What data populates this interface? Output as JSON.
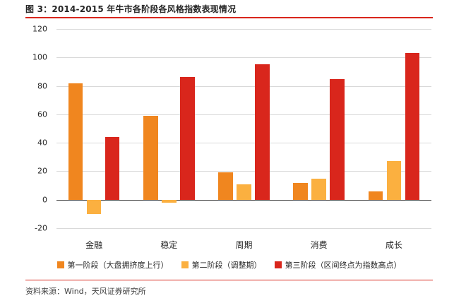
{
  "title": "图 3：2014-2015 年牛市各阶段各风格指数表现情况",
  "source": "资料来源：Wind，天风证券研究所",
  "colors": {
    "accent_line": "#D9261C",
    "grid_line": "#D9D9D9",
    "zero_axis": "#404040",
    "title_text": "#262626",
    "source_text": "#404040"
  },
  "chart_data": {
    "type": "bar",
    "title": "图 3：2014-2015 年牛市各阶段各风格指数表现情况",
    "categories": [
      "金融",
      "稳定",
      "周期",
      "消费",
      "成长"
    ],
    "series": [
      {
        "name": "第一阶段（大盘拥挤度上行）",
        "color": "#F0861F",
        "values": [
          82,
          59,
          19,
          12,
          6
        ]
      },
      {
        "name": "第二阶段（调整期）",
        "color": "#FBB040",
        "values": [
          -10,
          -2,
          11,
          15,
          27
        ]
      },
      {
        "name": "第三阶段（区间终点为指数高点）",
        "color": "#D9261C",
        "values": [
          44,
          86,
          95,
          85,
          103
        ]
      }
    ],
    "ylim": [
      -20,
      120
    ],
    "yticks": [
      -20,
      0,
      20,
      40,
      60,
      80,
      100,
      120
    ],
    "grid": true,
    "legend_position": "bottom"
  }
}
